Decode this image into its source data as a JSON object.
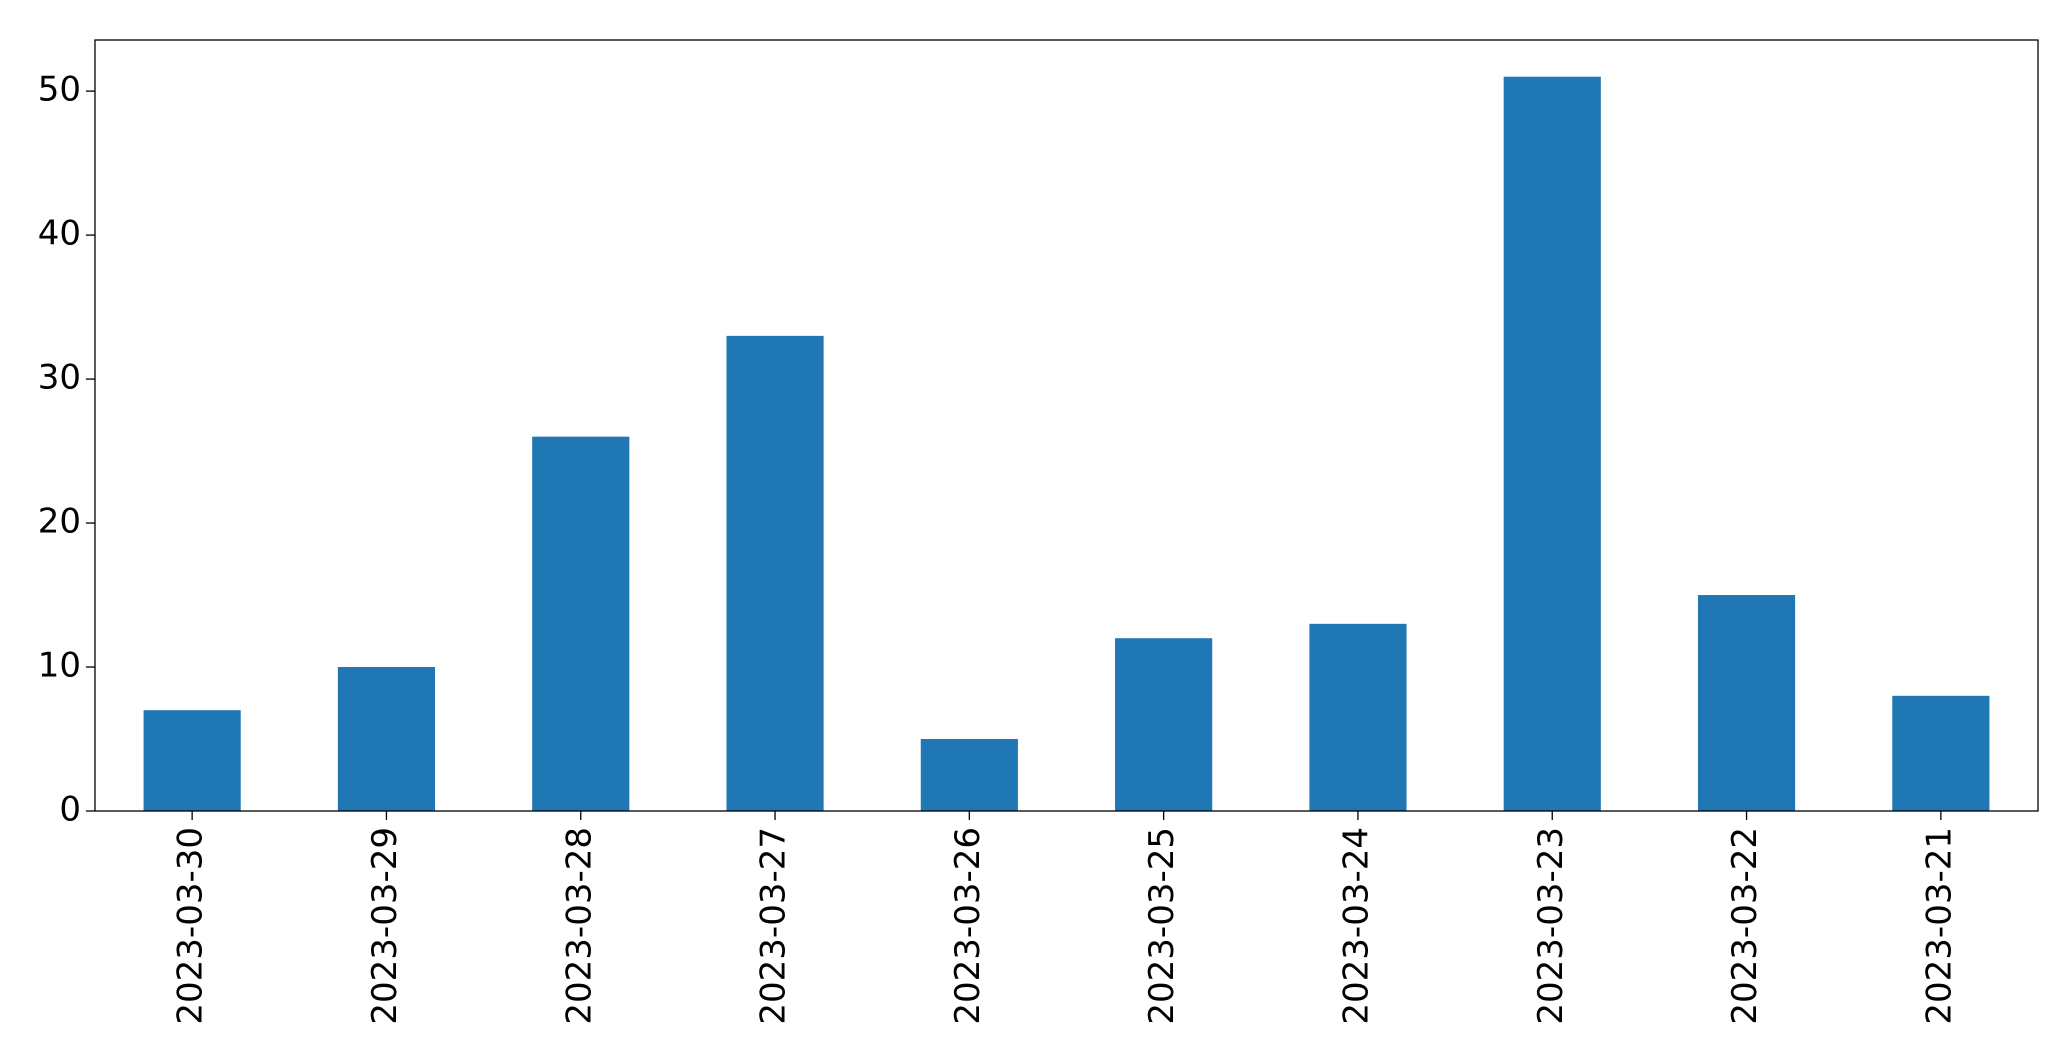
{
  "chart_data": {
    "type": "bar",
    "categories": [
      "2023-03-30",
      "2023-03-29",
      "2023-03-28",
      "2023-03-27",
      "2023-03-26",
      "2023-03-25",
      "2023-03-24",
      "2023-03-23",
      "2023-03-22",
      "2023-03-21"
    ],
    "values": [
      7,
      10,
      26,
      33,
      5,
      12,
      13,
      51,
      15,
      8
    ],
    "color": "#1f77b4",
    "ylim": [
      0,
      53.55
    ],
    "yticks": [
      0,
      10,
      20,
      30,
      40,
      50
    ],
    "grid": false
  }
}
